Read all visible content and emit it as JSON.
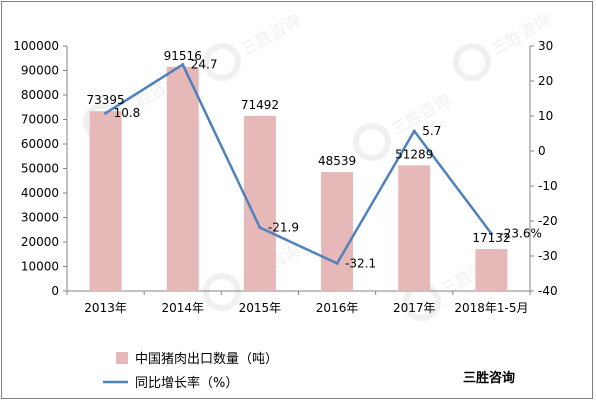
{
  "chart_data": {
    "type": "bar",
    "categories": [
      "2013年",
      "2014年",
      "2015年",
      "2016年",
      "2017年",
      "2018年1-5月"
    ],
    "series": [
      {
        "name": "中国猪肉出口数量（吨）",
        "type": "bar",
        "axis": "left",
        "values": [
          73395,
          91516,
          71492,
          48539,
          51289,
          17132
        ],
        "labels": [
          "73395",
          "91516",
          "71492",
          "48539",
          "51289",
          "17132"
        ],
        "color": "#e6b9b8"
      },
      {
        "name": "同比增长率（%）",
        "type": "line",
        "axis": "right",
        "values": [
          10.8,
          24.7,
          -21.9,
          -32.1,
          5.7,
          -23.6
        ],
        "labels": [
          "10.8",
          "24.7",
          "-21.9",
          "-32.1",
          "5.7",
          "-23.6%"
        ],
        "color": "#4f81bd"
      }
    ],
    "y_left": {
      "ylim": [
        0,
        100000
      ],
      "ticks": [
        "0",
        "10000",
        "20000",
        "30000",
        "40000",
        "50000",
        "60000",
        "70000",
        "80000",
        "90000",
        "100000"
      ]
    },
    "y_right": {
      "ylim": [
        -40,
        30
      ],
      "ticks": [
        "-40",
        "-30",
        "-20",
        "-10",
        "0",
        "10",
        "20",
        "30"
      ]
    },
    "legend_position": "bottom-left",
    "grid": false
  },
  "brand": "三胜咨询",
  "watermark_text": "三胜咨询 Sansheng Consulting"
}
